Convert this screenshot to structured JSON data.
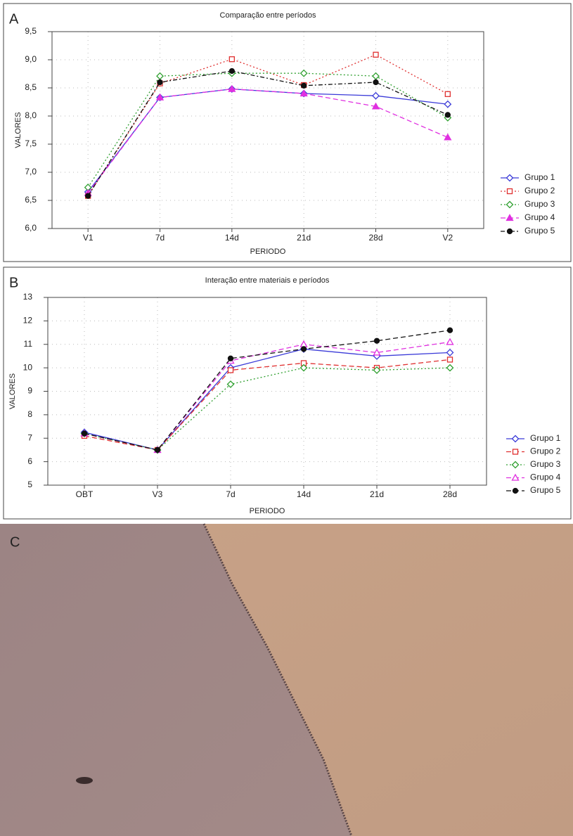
{
  "chart_data": [
    {
      "type": "line",
      "panel": "A",
      "title": "Comparação entre períodos",
      "x_label": "PERIODO",
      "y_label": "VALORES",
      "categories": [
        "V1",
        "7d",
        "14d",
        "21d",
        "28d",
        "V2"
      ],
      "ylim": [
        6.0,
        9.5
      ],
      "yticks": [
        {
          "value": 6.0,
          "label": "6,0"
        },
        {
          "value": 6.5,
          "label": "6,5"
        },
        {
          "value": 7.0,
          "label": "7,0"
        },
        {
          "value": 7.5,
          "label": "7,5"
        },
        {
          "value": 8.0,
          "label": "8,0"
        },
        {
          "value": 8.5,
          "label": "8,5"
        },
        {
          "value": 9.0,
          "label": "9,0"
        },
        {
          "value": 9.5,
          "label": "9,5"
        }
      ],
      "grid": true,
      "series": [
        {
          "name": "Grupo 1",
          "color": "#3a3ad8",
          "marker": "diamond",
          "linestyle": "solid",
          "values": [
            6.65,
            8.33,
            8.48,
            8.4,
            8.36,
            8.21
          ]
        },
        {
          "name": "Grupo 2",
          "color": "#e03030",
          "marker": "square",
          "linestyle": "dotted",
          "values": [
            6.58,
            8.58,
            9.01,
            8.55,
            9.09,
            8.39
          ]
        },
        {
          "name": "Grupo 3",
          "color": "#30a030",
          "marker": "diamond",
          "linestyle": "dotted",
          "values": [
            6.73,
            8.71,
            8.76,
            8.76,
            8.71,
            7.97
          ]
        },
        {
          "name": "Grupo 4",
          "color": "#e030e0",
          "marker": "triangle-filled",
          "linestyle": "dashed",
          "values": [
            6.63,
            8.33,
            8.48,
            8.4,
            8.17,
            7.62
          ]
        },
        {
          "name": "Grupo 5",
          "color": "#111111",
          "marker": "circle-filled",
          "linestyle": "dashdot",
          "values": [
            6.58,
            8.6,
            8.8,
            8.54,
            8.6,
            8.02
          ]
        }
      ]
    },
    {
      "type": "line",
      "panel": "B",
      "title": "Interação entre materiais e períodos",
      "x_label": "PERIODO",
      "y_label": "VALORES",
      "categories": [
        "OBT",
        "V3",
        "7d",
        "14d",
        "21d",
        "28d"
      ],
      "ylim": [
        5,
        13
      ],
      "yticks": [
        5,
        6,
        7,
        8,
        9,
        10,
        11,
        12,
        13
      ],
      "grid": true,
      "series": [
        {
          "name": "Grupo 1",
          "color": "#3a3ad8",
          "marker": "diamond",
          "linestyle": "solid",
          "values": [
            7.25,
            6.5,
            10.0,
            10.8,
            10.5,
            10.65
          ]
        },
        {
          "name": "Grupo 2",
          "color": "#e03030",
          "marker": "square",
          "linestyle": "dashed",
          "values": [
            7.1,
            6.5,
            9.9,
            10.2,
            10.0,
            10.35
          ]
        },
        {
          "name": "Grupo 3",
          "color": "#30a030",
          "marker": "diamond",
          "linestyle": "dotted",
          "values": [
            7.2,
            6.5,
            9.3,
            10.0,
            9.9,
            10.0
          ]
        },
        {
          "name": "Grupo 4",
          "color": "#e030e0",
          "marker": "triangle",
          "linestyle": "dashed",
          "values": [
            7.2,
            6.5,
            10.3,
            11.0,
            10.65,
            11.1
          ]
        },
        {
          "name": "Grupo 5",
          "color": "#111111",
          "marker": "circle-filled",
          "linestyle": "dashed",
          "values": [
            7.2,
            6.5,
            10.4,
            10.8,
            11.15,
            11.6
          ]
        }
      ]
    }
  ],
  "photo": {
    "label": "C"
  }
}
